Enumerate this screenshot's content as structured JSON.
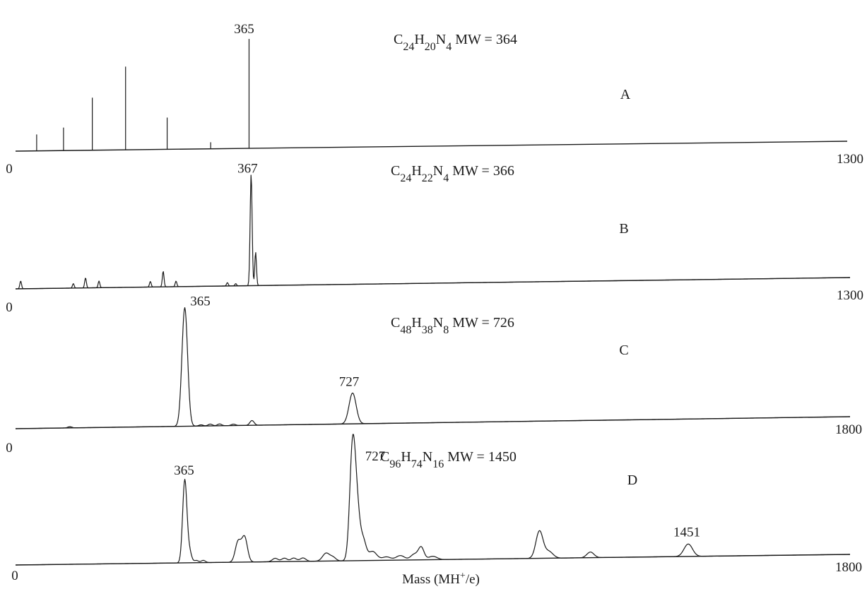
{
  "chart_data": [
    {
      "type": "line",
      "panel": "A",
      "formula": {
        "parts": [
          [
            "C",
            ""
          ],
          [
            "24",
            "sub"
          ],
          [
            "H",
            ""
          ],
          [
            "20",
            "sub"
          ],
          [
            "N",
            ""
          ],
          [
            "4",
            "sub"
          ]
        ],
        "mw": "MW = 364"
      },
      "xlim": [
        0,
        1300
      ],
      "x_start_label": "0",
      "x_end_label": "1300",
      "style": "stick",
      "peak_labels": [
        {
          "x": 365,
          "text": "365"
        }
      ],
      "peaks": [
        {
          "x": 33,
          "y": 0.15
        },
        {
          "x": 75,
          "y": 0.21
        },
        {
          "x": 120,
          "y": 0.48
        },
        {
          "x": 172,
          "y": 0.76
        },
        {
          "x": 237,
          "y": 0.29
        },
        {
          "x": 305,
          "y": 0.06
        },
        {
          "x": 365,
          "y": 1.0
        }
      ]
    },
    {
      "type": "line",
      "panel": "B",
      "formula": {
        "parts": [
          [
            "C",
            ""
          ],
          [
            "24",
            "sub"
          ],
          [
            "H",
            ""
          ],
          [
            "22",
            "sub"
          ],
          [
            "N",
            ""
          ],
          [
            "4",
            "sub"
          ]
        ],
        "mw": "MW = 366"
      },
      "xlim": [
        0,
        1300
      ],
      "x_start_label": "0",
      "x_end_label": "1300",
      "style": "trace",
      "peak_labels": [
        {
          "x": 367,
          "text": "367"
        }
      ],
      "peaks": [
        {
          "x": 8,
          "y": 0.07,
          "w": 1.2
        },
        {
          "x": 90,
          "y": 0.04,
          "w": 1.2
        },
        {
          "x": 109,
          "y": 0.09,
          "w": 1.2
        },
        {
          "x": 130,
          "y": 0.06,
          "w": 1.2
        },
        {
          "x": 210,
          "y": 0.05,
          "w": 1.2
        },
        {
          "x": 230,
          "y": 0.14,
          "w": 1.2
        },
        {
          "x": 250,
          "y": 0.05,
          "w": 1.2
        },
        {
          "x": 330,
          "y": 0.03,
          "w": 1.2
        },
        {
          "x": 343,
          "y": 0.02,
          "w": 1.2
        },
        {
          "x": 367,
          "y": 1.0,
          "w": 1.4
        },
        {
          "x": 374,
          "y": 0.3,
          "w": 1.2
        }
      ]
    },
    {
      "type": "line",
      "panel": "C",
      "formula": {
        "parts": [
          [
            "C",
            ""
          ],
          [
            "48",
            "sub"
          ],
          [
            "H",
            ""
          ],
          [
            "38",
            "sub"
          ],
          [
            "N",
            ""
          ],
          [
            "8",
            "sub"
          ]
        ],
        "mw": "MW = 726"
      },
      "xlim": [
        0,
        1800
      ],
      "x_start_label": "0",
      "x_end_label": "1800",
      "style": "trace",
      "peak_labels": [
        {
          "x": 365,
          "text": "365"
        },
        {
          "x": 727,
          "text": "727"
        }
      ],
      "peaks": [
        {
          "x": 117,
          "y": 0.01,
          "w": 3
        },
        {
          "x": 365,
          "y": 1.0,
          "w": 4
        },
        {
          "x": 400,
          "y": 0.01,
          "w": 3
        },
        {
          "x": 420,
          "y": 0.015,
          "w": 3
        },
        {
          "x": 440,
          "y": 0.015,
          "w": 3
        },
        {
          "x": 470,
          "y": 0.012,
          "w": 3
        },
        {
          "x": 510,
          "y": 0.04,
          "w": 3
        },
        {
          "x": 727,
          "y": 0.26,
          "w": 5
        }
      ]
    },
    {
      "type": "line",
      "panel": "D",
      "formula": {
        "parts": [
          [
            "C",
            ""
          ],
          [
            "96",
            "sub"
          ],
          [
            "H",
            ""
          ],
          [
            "74",
            "sub"
          ],
          [
            "N",
            ""
          ],
          [
            "16",
            "sub"
          ]
        ],
        "mw": "MW = 1450"
      },
      "xlim": [
        0,
        1800
      ],
      "x_start_label": "0",
      "x_end_label": "1800",
      "style": "trace",
      "peak_labels": [
        {
          "x": 365,
          "text": "365"
        },
        {
          "x": 727,
          "text": "727"
        },
        {
          "x": 1451,
          "text": "1451"
        }
      ],
      "peaks": [
        {
          "x": 365,
          "y": 0.73,
          "w": 3
        },
        {
          "x": 375,
          "y": 0.1,
          "w": 3
        },
        {
          "x": 390,
          "y": 0.02,
          "w": 3
        },
        {
          "x": 405,
          "y": 0.02,
          "w": 3
        },
        {
          "x": 480,
          "y": 0.18,
          "w": 4
        },
        {
          "x": 494,
          "y": 0.22,
          "w": 4
        },
        {
          "x": 560,
          "y": 0.03,
          "w": 4
        },
        {
          "x": 580,
          "y": 0.03,
          "w": 4
        },
        {
          "x": 600,
          "y": 0.03,
          "w": 4
        },
        {
          "x": 620,
          "y": 0.03,
          "w": 4
        },
        {
          "x": 670,
          "y": 0.07,
          "w": 5
        },
        {
          "x": 685,
          "y": 0.03,
          "w": 4
        },
        {
          "x": 727,
          "y": 1.0,
          "w": 4
        },
        {
          "x": 737,
          "y": 0.4,
          "w": 4
        },
        {
          "x": 750,
          "y": 0.17,
          "w": 4
        },
        {
          "x": 770,
          "y": 0.08,
          "w": 6
        },
        {
          "x": 800,
          "y": 0.03,
          "w": 6
        },
        {
          "x": 830,
          "y": 0.04,
          "w": 6
        },
        {
          "x": 860,
          "y": 0.05,
          "w": 5
        },
        {
          "x": 875,
          "y": 0.11,
          "w": 4
        },
        {
          "x": 900,
          "y": 0.03,
          "w": 6
        },
        {
          "x": 1130,
          "y": 0.24,
          "w": 5
        },
        {
          "x": 1150,
          "y": 0.06,
          "w": 6
        },
        {
          "x": 1240,
          "y": 0.05,
          "w": 5
        },
        {
          "x": 1451,
          "y": 0.11,
          "w": 6
        }
      ]
    }
  ],
  "x_axis_label": {
    "parts": [
      [
        "Mass (MH",
        ""
      ],
      [
        "+",
        "sup"
      ],
      [
        "/e)",
        ""
      ]
    ]
  }
}
